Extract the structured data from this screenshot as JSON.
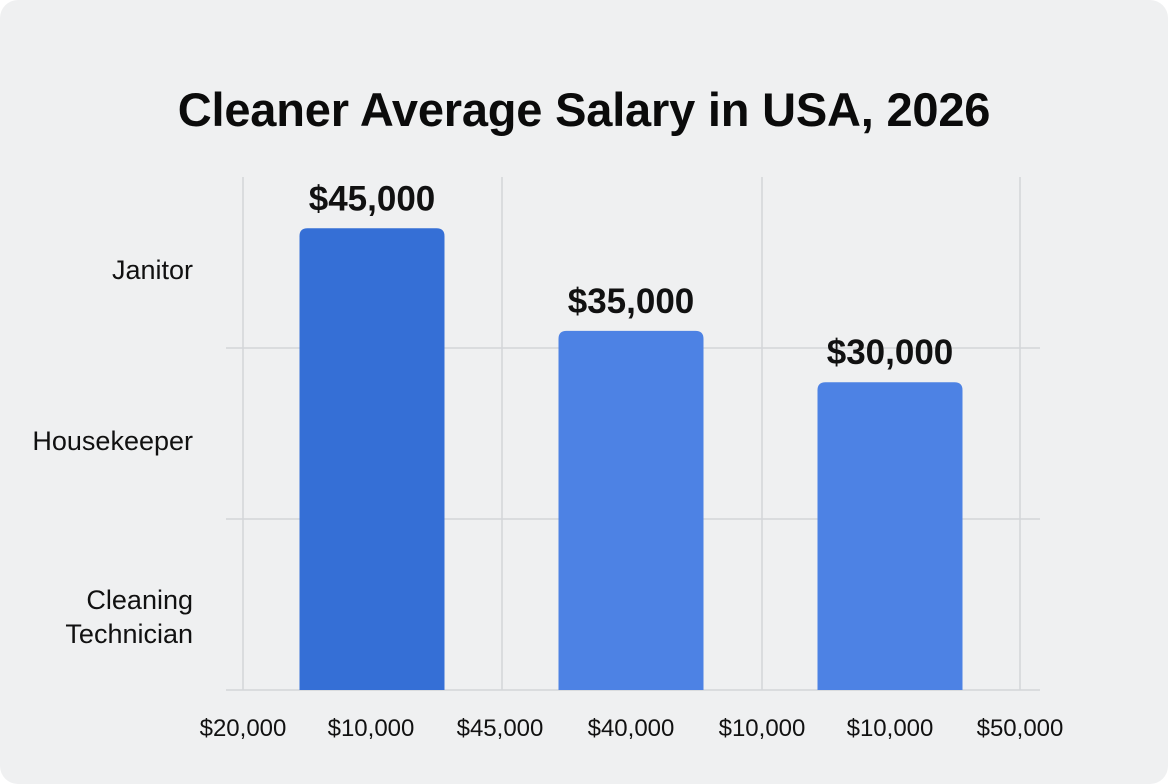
{
  "chart_data": {
    "type": "bar",
    "title": "Cleaner Average Salary in USA, 2026",
    "categories": [
      "Janitor",
      "Housekeeper",
      "Cleaning Technician"
    ],
    "category_labels": [
      [
        "Janitor"
      ],
      [
        "Housekeeper"
      ],
      [
        "Cleaning",
        "Technician"
      ]
    ],
    "values": [
      45000,
      35000,
      30000
    ],
    "data_labels": [
      "$45,000",
      "$35,000",
      "$30,000"
    ],
    "x_tick_labels": [
      "$20,000",
      "$10,000",
      "$45,000",
      "$40,000",
      "$10,000",
      "$10,000",
      "$50,000"
    ],
    "ylim": [
      0,
      50000
    ],
    "grid": true,
    "colors": [
      "#356fd6",
      "#4d82e4",
      "#4d82e4"
    ]
  }
}
